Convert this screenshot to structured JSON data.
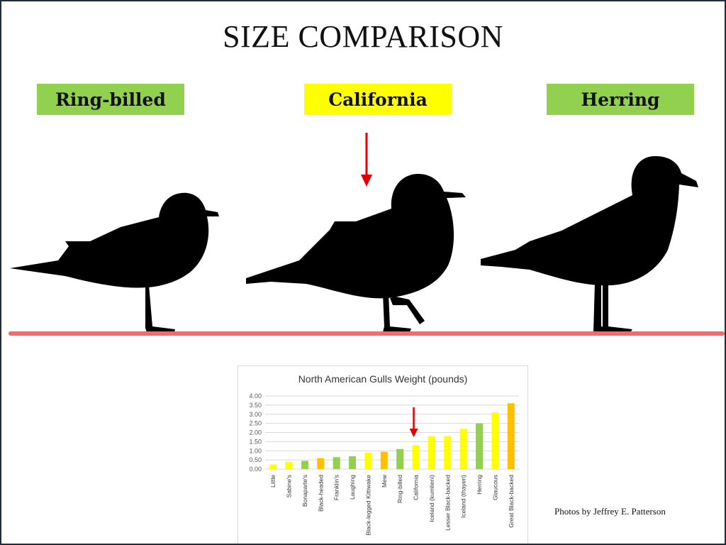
{
  "slide": {
    "title": "SIZE COMPARISON",
    "labels": [
      {
        "text": "Ring-billed",
        "color": "#92d050"
      },
      {
        "text": "California",
        "color": "#ffff00"
      },
      {
        "text": "Herring",
        "color": "#92d050"
      }
    ],
    "credit": "Photos by Jeffrey E. Patterson",
    "ground_line_color": "#f26b6b",
    "arrow_color": "#e00000"
  },
  "chart_data": {
    "type": "bar",
    "title": "North  American Gulls Weight (pounds)",
    "xlabel": "",
    "ylabel": "",
    "ylim": [
      0,
      4
    ],
    "yticks": [
      "4.00",
      "3.50",
      "3.00",
      "2.50",
      "2.00",
      "1.50",
      "1.00",
      "0.50",
      "0.00"
    ],
    "grid": true,
    "categories": [
      "Little",
      "Sabine's",
      "Bonaparte's",
      "Black-headed",
      "Franklin's",
      "Laughing",
      "Black-legged Kittiwake",
      "Mew",
      "Ring-billed",
      "California",
      "Iceland (kumlieni)",
      "Lesser Black-backed",
      "Iceland (thayeri)",
      "Herring",
      "Glaucous",
      "Great Black-backed"
    ],
    "values": [
      0.25,
      0.4,
      0.45,
      0.6,
      0.65,
      0.7,
      0.9,
      0.95,
      1.1,
      1.3,
      1.8,
      1.8,
      2.2,
      2.5,
      3.1,
      3.6
    ],
    "colors": [
      "#ffff00",
      "#ffff00",
      "#92d050",
      "#ffc000",
      "#92d050",
      "#92d050",
      "#ffff00",
      "#ffc000",
      "#92d050",
      "#ffff00",
      "#ffff00",
      "#ffff00",
      "#ffff00",
      "#92d050",
      "#ffff00",
      "#ffc000"
    ],
    "highlight": "California"
  }
}
